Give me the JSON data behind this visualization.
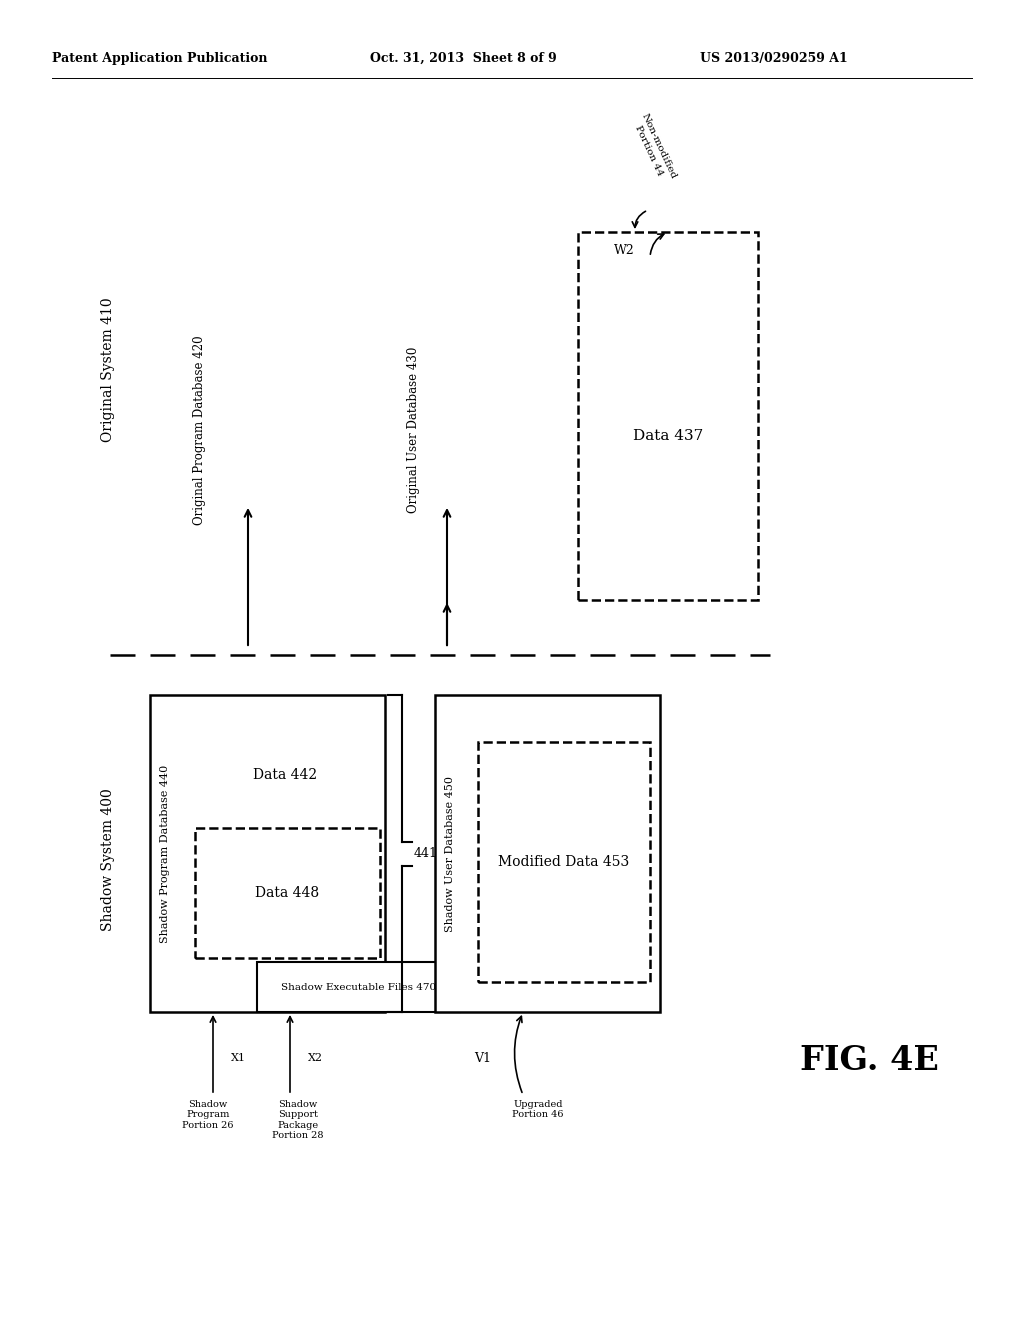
{
  "bg_color": "#ffffff",
  "header_left": "Patent Application Publication",
  "header_mid": "Oct. 31, 2013  Sheet 8 of 9",
  "header_right": "US 2013/0290259 A1",
  "fig_label": "FIG. 4E",
  "shadow_system_label": "Shadow System 400",
  "original_system_label": "Original System 410",
  "shadow_prog_db_label": "Shadow Program Database 440",
  "original_prog_db_label": "Original Program Database 420",
  "shadow_user_db_label": "Shadow User Database 450",
  "original_user_db_label": "Original User Database 430",
  "shadow_exec_files_label": "Shadow Executable Files 470",
  "data442_label": "Data 442",
  "data448_label": "Data 448",
  "data453_label": "Modified Data 453",
  "data437_label": "Data 437",
  "label_441": "441",
  "label_x1": "X1",
  "label_x2": "X2",
  "label_v1": "V1",
  "label_w2": "W2",
  "shadow_prog_portion_label": "Shadow\nProgram\nPortion 26",
  "shadow_support_label": "Shadow\nSupport\nPackage\nPortion 28",
  "upgraded_portion_label": "Upgraded\nPortion 46",
  "non_modified_label": "Non-modified\nPortion 44"
}
